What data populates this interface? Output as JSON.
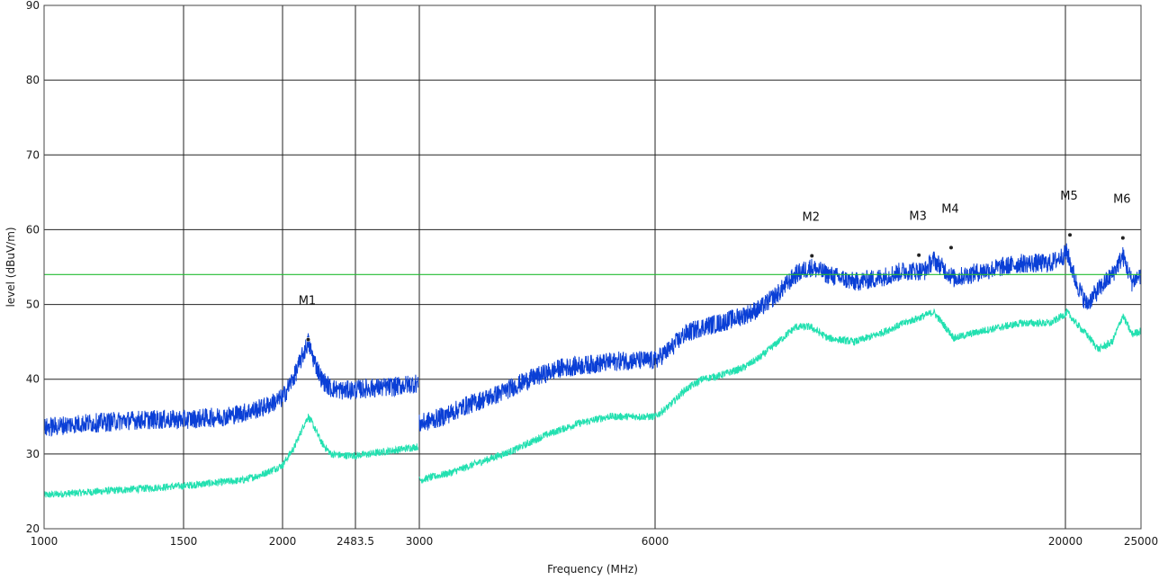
{
  "chart_data": {
    "type": "line",
    "xlabel": "Frequency (MHz)",
    "ylabel": "level (dBuV/m)",
    "ylim": [
      20,
      90
    ],
    "y_ticks": [
      20,
      30,
      40,
      50,
      60,
      70,
      80,
      90
    ],
    "x_ticks": [
      "1000",
      "1500",
      "2000",
      "2483.5",
      "3000",
      "6000",
      "20000",
      "25000"
    ],
    "x_tick_values": [
      1000,
      1500,
      2000,
      2483.5,
      3000,
      6000,
      20000,
      25000
    ],
    "grid": true,
    "limit_line": {
      "value": 54,
      "color": "#22bb33"
    },
    "series": [
      {
        "color": "#0a3fd6",
        "points": [
          [
            1000,
            33.5
          ],
          [
            1100,
            34
          ],
          [
            1200,
            34.2
          ],
          [
            1300,
            34.5
          ],
          [
            1400,
            34.6
          ],
          [
            1500,
            34.6
          ],
          [
            1600,
            34.8
          ],
          [
            1700,
            35
          ],
          [
            1800,
            35.5
          ],
          [
            1900,
            36.2
          ],
          [
            2000,
            37.5
          ],
          [
            2080,
            40.5
          ],
          [
            2140,
            43.5
          ],
          [
            2170,
            45
          ],
          [
            2200,
            43
          ],
          [
            2260,
            40
          ],
          [
            2320,
            38.8
          ],
          [
            2400,
            38.5
          ],
          [
            2483.5,
            38.6
          ],
          [
            2600,
            38.8
          ],
          [
            2800,
            39
          ],
          [
            2990,
            39.5
          ],
          [
            3000,
            34
          ],
          [
            3300,
            35
          ],
          [
            3600,
            36.5
          ],
          [
            4000,
            38
          ],
          [
            4400,
            40
          ],
          [
            4800,
            41.5
          ],
          [
            5200,
            42
          ],
          [
            5600,
            42.5
          ],
          [
            6000,
            42.5
          ],
          [
            6500,
            44
          ],
          [
            7000,
            46
          ],
          [
            7600,
            47
          ],
          [
            8200,
            47.5
          ],
          [
            9000,
            48.5
          ],
          [
            9600,
            49.5
          ],
          [
            10200,
            51.5
          ],
          [
            10800,
            54
          ],
          [
            11300,
            55
          ],
          [
            11900,
            54
          ],
          [
            12800,
            53
          ],
          [
            13600,
            53.5
          ],
          [
            14500,
            54.5
          ],
          [
            15200,
            54.5
          ],
          [
            15500,
            56
          ],
          [
            16200,
            53.5
          ],
          [
            17200,
            54.5
          ],
          [
            18500,
            55.5
          ],
          [
            19500,
            55.5
          ],
          [
            20100,
            57
          ],
          [
            20700,
            53
          ],
          [
            21400,
            50
          ],
          [
            22200,
            52
          ],
          [
            23100,
            54
          ],
          [
            23800,
            56.5
          ],
          [
            24400,
            53
          ],
          [
            25000,
            54
          ]
        ]
      },
      {
        "color": "#22e0b0",
        "points": [
          [
            1000,
            24.5
          ],
          [
            1200,
            25
          ],
          [
            1400,
            25.5
          ],
          [
            1600,
            26
          ],
          [
            1800,
            26.5
          ],
          [
            1900,
            27.3
          ],
          [
            2000,
            28.5
          ],
          [
            2080,
            31
          ],
          [
            2140,
            33.8
          ],
          [
            2170,
            35
          ],
          [
            2200,
            34
          ],
          [
            2260,
            31.5
          ],
          [
            2320,
            30
          ],
          [
            2400,
            29.8
          ],
          [
            2483.5,
            29.8
          ],
          [
            2600,
            30
          ],
          [
            2800,
            30.5
          ],
          [
            2990,
            31
          ],
          [
            3000,
            26.5
          ],
          [
            3400,
            27.5
          ],
          [
            3800,
            29
          ],
          [
            4200,
            30.5
          ],
          [
            4600,
            32.5
          ],
          [
            5000,
            34
          ],
          [
            5400,
            35
          ],
          [
            5800,
            35
          ],
          [
            6000,
            35
          ],
          [
            6500,
            36.5
          ],
          [
            7000,
            38.5
          ],
          [
            7600,
            40
          ],
          [
            8200,
            40.5
          ],
          [
            9000,
            41.5
          ],
          [
            9600,
            43
          ],
          [
            10200,
            45
          ],
          [
            10800,
            47
          ],
          [
            11300,
            47
          ],
          [
            11900,
            45.5
          ],
          [
            12800,
            45
          ],
          [
            13600,
            46
          ],
          [
            14500,
            47.5
          ],
          [
            15200,
            48.5
          ],
          [
            15500,
            49
          ],
          [
            16200,
            45.5
          ],
          [
            17200,
            46.5
          ],
          [
            18500,
            47.5
          ],
          [
            19500,
            47.5
          ],
          [
            20100,
            49
          ],
          [
            20700,
            47.5
          ],
          [
            21400,
            46
          ],
          [
            22200,
            44
          ],
          [
            23100,
            45
          ],
          [
            23800,
            48.5
          ],
          [
            24400,
            46
          ],
          [
            25000,
            46.5
          ]
        ]
      }
    ],
    "markers": [
      {
        "label": "M1",
        "x": 2170,
        "y": 45.3
      },
      {
        "label": "M2",
        "x": 11350,
        "y": 56.5
      },
      {
        "label": "M3",
        "x": 15000,
        "y": 56.6
      },
      {
        "label": "M4",
        "x": 16100,
        "y": 57.6
      },
      {
        "label": "M5",
        "x": 20300,
        "y": 59.3
      },
      {
        "label": "M6",
        "x": 23800,
        "y": 58.9
      }
    ]
  }
}
